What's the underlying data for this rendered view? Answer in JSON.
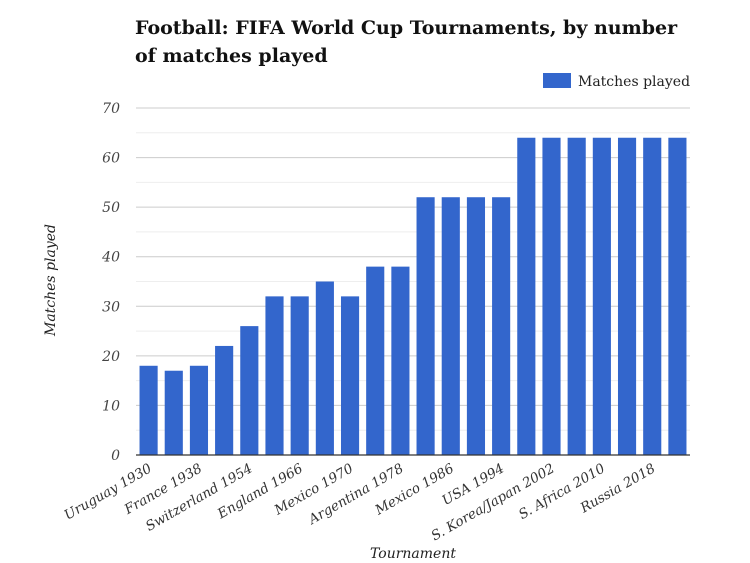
{
  "chart_data": {
    "type": "bar",
    "title": "Football: FIFA World Cup Tournaments, by number of matches played",
    "xlabel": "Tournament",
    "ylabel": "Matches played",
    "ylim": [
      0,
      70
    ],
    "yticks": [
      0,
      10,
      20,
      30,
      40,
      50,
      60,
      70
    ],
    "grid": true,
    "legend_position": "top-right",
    "categories": [
      "Uruguay 1930",
      "",
      "France 1938",
      "",
      "Switzerland 1954",
      "",
      "England 1966",
      "",
      "Mexico 1970",
      "",
      "Argentina 1978",
      "",
      "Mexico 1986",
      "",
      "USA 1994",
      "",
      "S. Korea/Japan 2002",
      "",
      "S. Africa 2010",
      "",
      "Russia 2018",
      ""
    ],
    "series": [
      {
        "name": "Matches played",
        "color": "#3366cc",
        "values": [
          18,
          17,
          18,
          22,
          26,
          32,
          32,
          35,
          32,
          38,
          38,
          52,
          52,
          52,
          52,
          64,
          64,
          64,
          64,
          64,
          64,
          64
        ]
      }
    ]
  }
}
